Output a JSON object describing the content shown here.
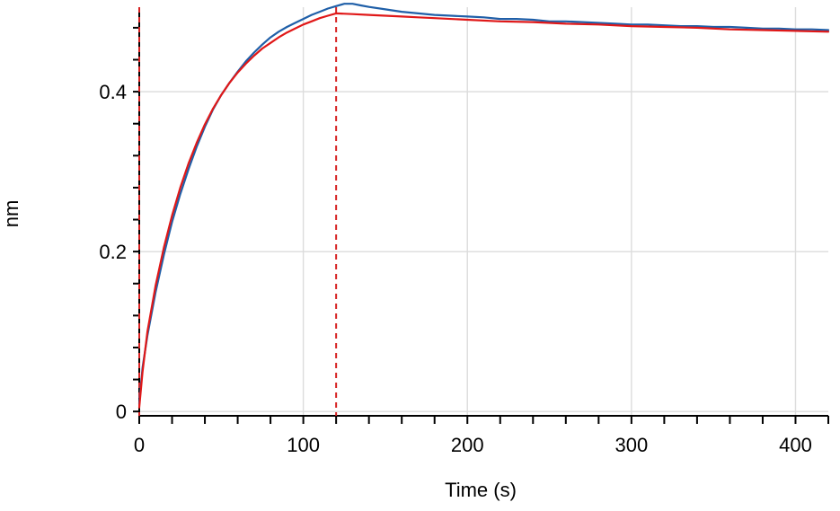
{
  "chart_data": {
    "type": "line",
    "xlabel": "Time (s)",
    "ylabel": "nm",
    "xlim": [
      0,
      420
    ],
    "ylim": [
      -0.0054,
      0.5057
    ],
    "grid": true,
    "x_ticks": [
      {
        "value": 0,
        "label": "0"
      },
      {
        "value": 100,
        "label": "100"
      },
      {
        "value": 200,
        "label": "200"
      },
      {
        "value": 300,
        "label": "300"
      },
      {
        "value": 400,
        "label": "400"
      }
    ],
    "y_ticks": [
      {
        "value": 0,
        "label": "0"
      },
      {
        "value": 0.2,
        "label": "0.2"
      },
      {
        "value": 0.4,
        "label": "0.4"
      }
    ],
    "x_minor_step": 20,
    "y_minor_step": 0.04,
    "vertical_markers": [
      {
        "x": 0,
        "color": "#d62020",
        "style": "dashed"
      },
      {
        "x": 120,
        "color": "#d62020",
        "style": "dashed"
      }
    ],
    "series": [
      {
        "role": "measured",
        "color": "#1f5fa8",
        "x": [
          0,
          2,
          5,
          10,
          15,
          20,
          25,
          30,
          35,
          40,
          45,
          50,
          55,
          60,
          65,
          70,
          75,
          80,
          85,
          90,
          95,
          100,
          105,
          110,
          115,
          120,
          125,
          130,
          135,
          140,
          150,
          160,
          170,
          180,
          190,
          200,
          210,
          220,
          230,
          240,
          250,
          260,
          270,
          280,
          290,
          300,
          310,
          320,
          330,
          340,
          350,
          360,
          370,
          380,
          390,
          400,
          410,
          420
        ],
        "y": [
          0.01,
          0.055,
          0.095,
          0.15,
          0.196,
          0.237,
          0.272,
          0.303,
          0.331,
          0.356,
          0.378,
          0.396,
          0.411,
          0.425,
          0.438,
          0.449,
          0.459,
          0.468,
          0.475,
          0.481,
          0.486,
          0.491,
          0.496,
          0.5,
          0.504,
          0.507,
          0.51,
          0.51,
          0.508,
          0.506,
          0.503,
          0.5,
          0.498,
          0.496,
          0.495,
          0.494,
          0.493,
          0.491,
          0.491,
          0.49,
          0.488,
          0.488,
          0.487,
          0.486,
          0.485,
          0.484,
          0.484,
          0.483,
          0.482,
          0.482,
          0.481,
          0.481,
          0.48,
          0.479,
          0.479,
          0.478,
          0.478,
          0.477
        ]
      },
      {
        "role": "fit",
        "color": "#e01818",
        "x": [
          0,
          2,
          5,
          10,
          15,
          20,
          25,
          30,
          35,
          40,
          45,
          50,
          55,
          60,
          65,
          70,
          75,
          80,
          85,
          90,
          95,
          100,
          105,
          110,
          115,
          120,
          130,
          140,
          150,
          160,
          170,
          180,
          200,
          220,
          240,
          260,
          280,
          300,
          320,
          340,
          360,
          380,
          400,
          420
        ],
        "y": [
          0.005,
          0.05,
          0.1,
          0.158,
          0.205,
          0.245,
          0.28,
          0.31,
          0.336,
          0.359,
          0.379,
          0.396,
          0.411,
          0.424,
          0.435,
          0.445,
          0.454,
          0.461,
          0.468,
          0.474,
          0.479,
          0.484,
          0.488,
          0.492,
          0.495,
          0.498,
          0.497,
          0.496,
          0.495,
          0.494,
          0.493,
          0.492,
          0.49,
          0.488,
          0.487,
          0.485,
          0.484,
          0.482,
          0.481,
          0.48,
          0.478,
          0.477,
          0.476,
          0.475
        ]
      }
    ]
  }
}
